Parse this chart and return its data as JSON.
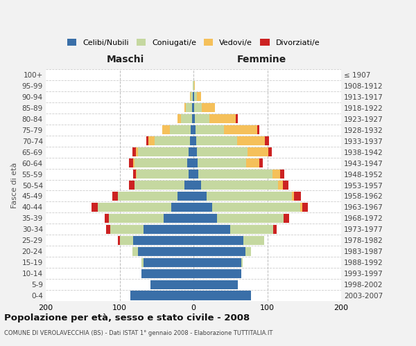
{
  "age_groups": [
    "0-4",
    "5-9",
    "10-14",
    "15-19",
    "20-24",
    "25-29",
    "30-34",
    "35-39",
    "40-44",
    "45-49",
    "50-54",
    "55-59",
    "60-64",
    "65-69",
    "70-74",
    "75-79",
    "80-84",
    "85-89",
    "90-94",
    "95-99",
    "100+"
  ],
  "birth_years": [
    "2003-2007",
    "1998-2002",
    "1993-1997",
    "1988-1992",
    "1983-1987",
    "1978-1982",
    "1973-1977",
    "1968-1972",
    "1963-1967",
    "1958-1962",
    "1953-1957",
    "1948-1952",
    "1943-1947",
    "1938-1942",
    "1933-1937",
    "1928-1932",
    "1923-1927",
    "1918-1922",
    "1913-1917",
    "1908-1912",
    "≤ 1907"
  ],
  "male": {
    "celibi": [
      85,
      58,
      70,
      68,
      75,
      82,
      68,
      40,
      30,
      22,
      12,
      7,
      8,
      7,
      5,
      4,
      2,
      2,
      1,
      0,
      0
    ],
    "coniugati": [
      0,
      0,
      0,
      2,
      8,
      18,
      45,
      75,
      100,
      80,
      68,
      70,
      72,
      68,
      48,
      28,
      15,
      8,
      3,
      1,
      0
    ],
    "vedovi": [
      0,
      0,
      0,
      0,
      0,
      0,
      0,
      0,
      0,
      0,
      0,
      1,
      2,
      3,
      8,
      10,
      5,
      2,
      1,
      0,
      0
    ],
    "divorziati": [
      0,
      0,
      0,
      0,
      0,
      2,
      5,
      5,
      8,
      8,
      7,
      4,
      5,
      5,
      3,
      0,
      0,
      0,
      0,
      0,
      0
    ]
  },
  "female": {
    "nubili": [
      78,
      60,
      65,
      65,
      70,
      68,
      50,
      32,
      25,
      18,
      10,
      7,
      6,
      5,
      4,
      3,
      2,
      1,
      1,
      0,
      0
    ],
    "coniugate": [
      0,
      0,
      0,
      2,
      8,
      28,
      58,
      90,
      120,
      115,
      105,
      100,
      65,
      68,
      55,
      38,
      20,
      10,
      4,
      1,
      0
    ],
    "vedove": [
      0,
      0,
      0,
      0,
      0,
      0,
      0,
      0,
      2,
      3,
      6,
      10,
      18,
      28,
      38,
      45,
      35,
      18,
      5,
      1,
      0
    ],
    "divorziate": [
      0,
      0,
      0,
      0,
      0,
      0,
      5,
      8,
      8,
      10,
      8,
      6,
      5,
      5,
      5,
      3,
      3,
      0,
      0,
      0,
      0
    ]
  },
  "colors": {
    "celibi": "#3A6FA8",
    "coniugati": "#C5D8A0",
    "vedovi": "#F5C05A",
    "divorziati": "#CC2222"
  },
  "xlim": 200,
  "title": "Popolazione per età, sesso e stato civile - 2008",
  "subtitle": "COMUNE DI VEROLAVECCHIA (BS) - Dati ISTAT 1° gennaio 2008 - Elaborazione TUTTITALIA.IT",
  "ylabel_left": "Fasce di età",
  "xlabel_left": "Maschi",
  "xlabel_right": "Femmine",
  "bg_color": "#f2f2f2",
  "plot_bg": "#ffffff"
}
